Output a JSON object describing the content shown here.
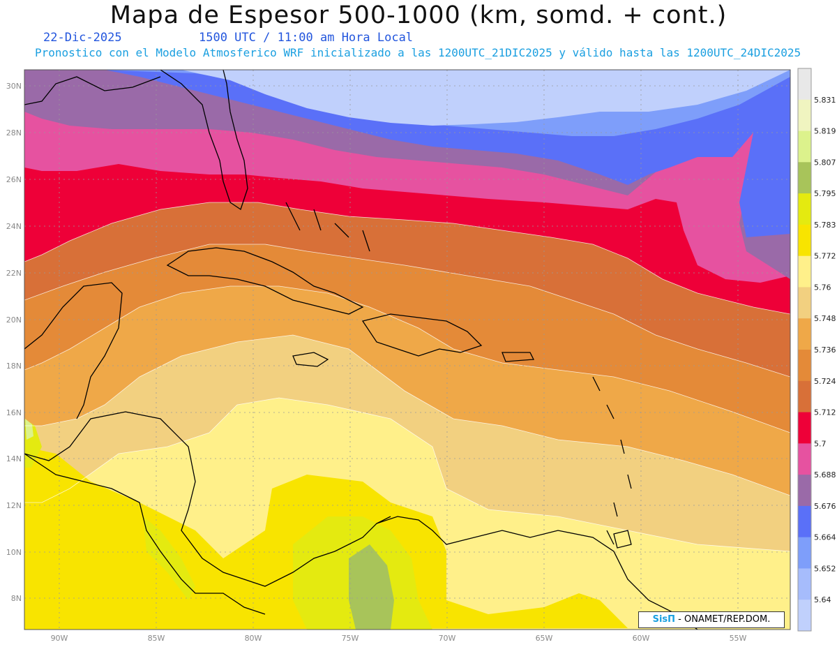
{
  "header": {
    "title": "Mapa de Espesor 500-1000 (km, somd. + cont.)",
    "date": "22-Dic-2025",
    "time": "1500 UTC / 11:00 am Hora Local",
    "subtitle": "Pronostico con el Modelo Atmosferico WRF inicializado a las 1200UTC_21DIC2025 y válido hasta las  1200UTC_24DIC2025"
  },
  "axes": {
    "lat_labels": [
      "30N",
      "28N",
      "26N",
      "24N",
      "22N",
      "20N",
      "18N",
      "16N",
      "14N",
      "12N",
      "10N",
      "8N"
    ],
    "lon_labels": [
      "90W",
      "85W",
      "80W",
      "75W",
      "70W",
      "65W",
      "60W",
      "55W"
    ]
  },
  "legend": {
    "levels": [
      "5.831",
      "5.819",
      "5.807",
      "5.795",
      "5.783",
      "5.772",
      "5.76",
      "5.748",
      "5.736",
      "5.724",
      "5.712",
      "5.7",
      "5.688",
      "5.676",
      "5.664",
      "5.652",
      "5.64"
    ],
    "colors": [
      "#e8e8e8",
      "#f0f4c0",
      "#dcf28c",
      "#a8c45a",
      "#e4ea10",
      "#f8e400",
      "#fff08a",
      "#f2d080",
      "#efa848",
      "#e48a38",
      "#d87038",
      "#ee0038",
      "#e652a0",
      "#9a6aa8",
      "#5a70f8",
      "#7e9efa",
      "#a6bcfc",
      "#c0d0fc"
    ]
  },
  "credit": {
    "logo": "SisΠ",
    "text": "- ONAMET/REP.DOM."
  },
  "colors": {
    "title": "#111111",
    "date_text": "#2255dd",
    "subtitle_text": "#1a9fe0",
    "coast": "#000000",
    "grid": "#aaaaaa"
  }
}
